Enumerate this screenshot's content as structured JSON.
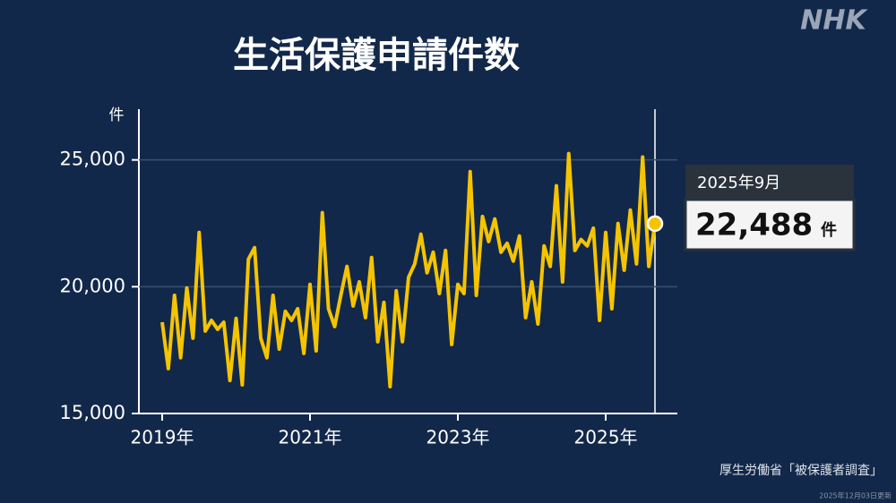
{
  "chart_data": {
    "type": "line",
    "title": "生活保護申請件数",
    "brand": "NHK",
    "y_unit": "件",
    "categories": [
      "2019年",
      null,
      null,
      null,
      null,
      null,
      null,
      null,
      null,
      null,
      null,
      null,
      null,
      null,
      null,
      null,
      null,
      null,
      null,
      null,
      null,
      null,
      null,
      null,
      "2021年",
      null,
      null,
      null,
      null,
      null,
      null,
      null,
      null,
      null,
      null,
      null,
      null,
      null,
      null,
      null,
      null,
      null,
      null,
      null,
      null,
      null,
      null,
      null,
      "2023年",
      null,
      null,
      null,
      null,
      null,
      null,
      null,
      null,
      null,
      null,
      null,
      null,
      null,
      null,
      null,
      null,
      null,
      null,
      null,
      null,
      null,
      null,
      null,
      "2025年",
      null,
      null,
      null,
      null,
      null,
      null,
      null,
      null
    ],
    "series": [
      {
        "color": "#f5c400",
        "values": [
          18600,
          16770,
          19660,
          17200,
          19950,
          17970,
          22140,
          18250,
          18670,
          18320,
          18600,
          16300,
          18750,
          16130,
          21080,
          21540,
          17970,
          17200,
          19660,
          17540,
          19030,
          18670,
          19130,
          17370,
          20090,
          17470,
          22920,
          19130,
          18430,
          19660,
          20800,
          19240,
          20190,
          18780,
          21150,
          17830,
          19380,
          16060,
          19840,
          17830,
          20370,
          20900,
          22070,
          20550,
          21360,
          19730,
          21430,
          17720,
          20090,
          19730,
          24540,
          19660,
          22770,
          21780,
          22670,
          21360,
          21710,
          21010,
          22000,
          18780,
          20190,
          18530,
          21610,
          20800,
          23980,
          20190,
          25250,
          21430,
          21860,
          21610,
          22310,
          18670,
          22140,
          19130,
          22490,
          20650,
          23020,
          20900,
          25110,
          20800,
          22488
        ]
      }
    ],
    "ylim": [
      15000,
      27000
    ],
    "yticks": [
      {
        "value": 15000,
        "label": "15,000"
      },
      {
        "value": 20000,
        "label": "20,000"
      },
      {
        "value": 25000,
        "label": "25,000"
      }
    ],
    "grid": true,
    "annotation": {
      "date": "2025年9月",
      "value": "22,488",
      "unit": "件"
    },
    "source": "厚生労働省「被保護者調査」",
    "updated": "2025年12月03日更新"
  }
}
